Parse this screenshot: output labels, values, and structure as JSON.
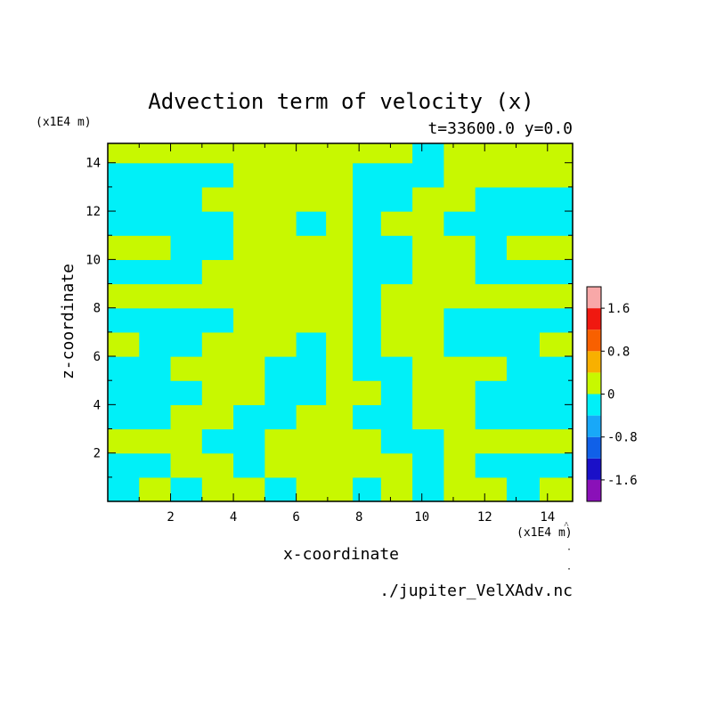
{
  "chart_data": {
    "type": "heatmap",
    "title": "Advection term of velocity (x)",
    "subtitle": "t=33600.0 y=0.0",
    "xlabel": "x-coordinate",
    "ylabel": "z-coordinate",
    "x_unit": "(x1E4 m)",
    "y_unit": "(x1E4 m)",
    "xlim": [
      0,
      14.8
    ],
    "ylim": [
      0,
      14.8
    ],
    "xticks": [
      2,
      4,
      6,
      8,
      10,
      12,
      14
    ],
    "yticks": [
      2,
      4,
      6,
      8,
      10,
      12,
      14
    ],
    "colorbar": {
      "levels": [
        -2.0,
        -1.6,
        -1.2,
        -0.8,
        -0.4,
        0,
        0.4,
        0.8,
        1.2,
        1.6,
        2.0
      ],
      "colors": [
        "#8a10b8",
        "#1a10c8",
        "#1060e8",
        "#18a8f8",
        "#00f0f8",
        "#c8f800",
        "#f8b000",
        "#f86000",
        "#f01810",
        "#f8a8a8"
      ],
      "labels": [
        "-1.6",
        "-0.8",
        "0",
        "0.8",
        "1.6"
      ]
    },
    "z_rows_description_free": true,
    "z_columns": [
      0.5,
      1.5,
      2.5,
      3.5,
      4.5,
      5.5,
      6.5,
      7.4,
      8.2,
      9.2,
      10.2,
      11.2,
      12.2,
      13.2,
      14.3
    ],
    "z_levels": [
      0.5,
      1.5,
      2.5,
      3.5,
      4.5,
      5.5,
      6.5,
      7.5,
      8.5,
      9.5,
      10.5,
      11.5,
      12.5,
      13.5,
      14.5
    ],
    "z_values": [
      [
        -0.2,
        0.2,
        -0.2,
        0.2,
        0.2,
        -0.2,
        0.2,
        0.2,
        -0.2,
        0.2,
        -0.2,
        0.2,
        0.2,
        -0.2,
        0.2
      ],
      [
        -0.2,
        -0.2,
        0.2,
        0.2,
        -0.2,
        0.2,
        0.2,
        0.2,
        0.2,
        0.2,
        -0.2,
        0.2,
        -0.2,
        -0.2,
        -0.2
      ],
      [
        0.2,
        0.2,
        0.2,
        -0.2,
        -0.2,
        0.2,
        0.2,
        0.2,
        0.2,
        -0.2,
        -0.2,
        0.2,
        0.2,
        0.2,
        0.2
      ],
      [
        -0.2,
        -0.2,
        0.2,
        0.2,
        -0.2,
        -0.2,
        0.2,
        0.2,
        -0.2,
        -0.2,
        0.2,
        0.2,
        -0.2,
        -0.2,
        -0.2
      ],
      [
        -0.2,
        -0.2,
        -0.2,
        0.2,
        0.2,
        -0.2,
        -0.2,
        0.2,
        0.2,
        -0.2,
        0.2,
        0.2,
        -0.2,
        -0.2,
        -0.2
      ],
      [
        -0.2,
        -0.2,
        0.2,
        0.2,
        0.2,
        -0.2,
        -0.2,
        0.2,
        -0.2,
        -0.2,
        0.2,
        0.2,
        0.2,
        -0.2,
        -0.2
      ],
      [
        0.2,
        -0.2,
        -0.2,
        0.2,
        0.2,
        0.2,
        -0.2,
        0.2,
        -0.2,
        0.2,
        0.2,
        -0.2,
        -0.2,
        -0.2,
        0.2
      ],
      [
        -0.2,
        -0.2,
        -0.2,
        -0.2,
        0.2,
        0.2,
        0.2,
        0.2,
        -0.2,
        0.2,
        0.2,
        -0.2,
        -0.2,
        -0.2,
        -0.2
      ],
      [
        0.2,
        0.2,
        0.2,
        0.2,
        0.2,
        0.2,
        0.2,
        0.2,
        -0.2,
        0.2,
        0.2,
        0.2,
        0.2,
        0.2,
        0.2
      ],
      [
        -0.2,
        -0.2,
        -0.2,
        0.2,
        0.2,
        0.2,
        0.2,
        0.2,
        -0.2,
        -0.2,
        0.2,
        0.2,
        -0.2,
        -0.2,
        -0.2
      ],
      [
        0.2,
        0.2,
        -0.2,
        -0.2,
        0.2,
        0.2,
        0.2,
        0.2,
        -0.2,
        -0.2,
        0.2,
        0.2,
        -0.2,
        0.2,
        0.2
      ],
      [
        -0.2,
        -0.2,
        -0.2,
        -0.2,
        0.2,
        0.2,
        -0.2,
        0.2,
        -0.2,
        0.2,
        0.2,
        -0.2,
        -0.2,
        -0.2,
        -0.2
      ],
      [
        -0.2,
        -0.2,
        -0.2,
        0.2,
        0.2,
        0.2,
        0.2,
        0.2,
        -0.2,
        -0.2,
        0.2,
        0.2,
        -0.2,
        -0.2,
        -0.2
      ],
      [
        -0.2,
        -0.2,
        -0.2,
        -0.2,
        0.2,
        0.2,
        0.2,
        0.2,
        -0.2,
        -0.2,
        -0.2,
        0.2,
        0.2,
        0.2,
        0.2
      ],
      [
        0.2,
        0.2,
        0.2,
        0.2,
        0.2,
        0.2,
        0.2,
        0.2,
        0.2,
        0.2,
        -0.2,
        0.2,
        0.2,
        0.2,
        0.2
      ]
    ],
    "grid": false,
    "legend": "colorbar-right"
  },
  "footer": {
    "filename": "./jupiter_VelXAdv.nc"
  }
}
